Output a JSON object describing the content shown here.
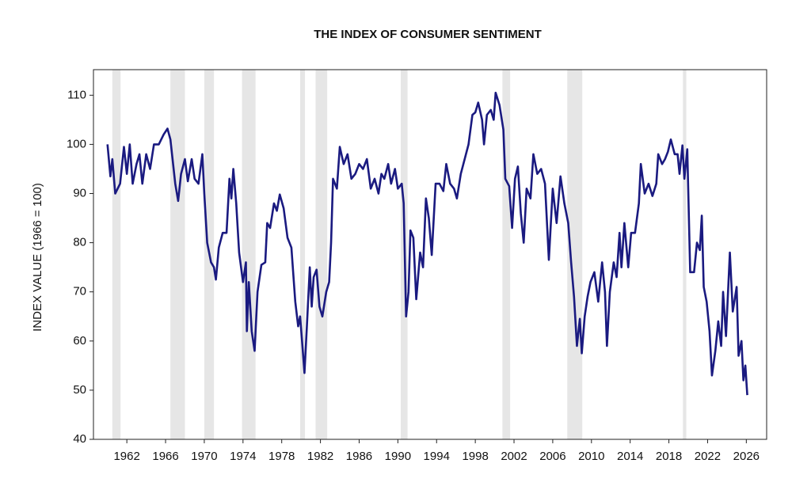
{
  "chart_data": {
    "type": "line",
    "title": "THE INDEX OF CONSUMER SENTIMENT",
    "y_label": "INDEX VALUE (1966 = 100)",
    "color": "#1a1a80",
    "shade_color": "#e6e6e6",
    "shaded_regions": [
      {
        "start": 1960.5,
        "end": 1961.35
      },
      {
        "start": 1966.5,
        "end": 1968.0
      },
      {
        "start": 1970.0,
        "end": 1971.0
      },
      {
        "start": 1973.9,
        "end": 1975.3
      },
      {
        "start": 1979.9,
        "end": 1980.4
      },
      {
        "start": 1981.5,
        "end": 1982.7
      },
      {
        "start": 1990.3,
        "end": 1991.0
      },
      {
        "start": 2000.8,
        "end": 2001.6
      },
      {
        "start": 2007.5,
        "end": 2009.05
      },
      {
        "start": 2019.45,
        "end": 2019.8
      }
    ],
    "x": [
      1960.0,
      1960.3,
      1960.5,
      1960.8,
      1961.3,
      1961.7,
      1962.0,
      1962.3,
      1962.6,
      1963.0,
      1963.3,
      1963.6,
      1964.0,
      1964.4,
      1964.8,
      1965.3,
      1965.8,
      1966.2,
      1966.5,
      1967.0,
      1967.3,
      1967.6,
      1968.0,
      1968.3,
      1968.7,
      1969.0,
      1969.4,
      1969.8,
      1970.0,
      1970.3,
      1970.7,
      1971.0,
      1971.2,
      1971.5,
      1971.9,
      1972.3,
      1972.6,
      1972.8,
      1973.0,
      1973.3,
      1973.6,
      1974.0,
      1974.3,
      1974.4,
      1974.6,
      1974.9,
      1975.2,
      1975.5,
      1975.9,
      1976.3,
      1976.5,
      1976.8,
      1977.2,
      1977.5,
      1977.8,
      1978.2,
      1978.6,
      1979.0,
      1979.4,
      1979.7,
      1979.9,
      1980.1,
      1980.35,
      1980.6,
      1980.9,
      1981.1,
      1981.3,
      1981.6,
      1981.9,
      1982.2,
      1982.6,
      1982.9,
      1983.1,
      1983.3,
      1983.7,
      1984.0,
      1984.4,
      1984.8,
      1985.2,
      1985.6,
      1986.0,
      1986.4,
      1986.8,
      1987.2,
      1987.6,
      1988.0,
      1988.3,
      1988.6,
      1989.0,
      1989.3,
      1989.7,
      1990.0,
      1990.4,
      1990.6,
      1990.85,
      1991.1,
      1991.3,
      1991.6,
      1991.9,
      1992.3,
      1992.6,
      1992.9,
      1993.2,
      1993.5,
      1993.9,
      1994.3,
      1994.7,
      1995.0,
      1995.4,
      1995.8,
      1996.1,
      1996.5,
      1996.9,
      1997.3,
      1997.7,
      1998.0,
      1998.3,
      1998.7,
      1998.9,
      1999.2,
      1999.6,
      1999.9,
      2000.1,
      2000.5,
      2000.9,
      2001.1,
      2001.5,
      2001.8,
      2002.1,
      2002.4,
      2002.7,
      2003.0,
      2003.3,
      2003.7,
      2004.0,
      2004.4,
      2004.8,
      2005.2,
      2005.6,
      2006.0,
      2006.4,
      2006.8,
      2007.2,
      2007.6,
      2007.9,
      2008.2,
      2008.5,
      2008.8,
      2009.0,
      2009.3,
      2009.6,
      2009.9,
      2010.3,
      2010.7,
      2011.1,
      2011.4,
      2011.6,
      2011.9,
      2012.3,
      2012.6,
      2012.9,
      2013.1,
      2013.4,
      2013.8,
      2014.1,
      2014.5,
      2014.9,
      2015.1,
      2015.5,
      2015.9,
      2016.3,
      2016.7,
      2016.9,
      2017.3,
      2017.6,
      2017.9,
      2018.2,
      2018.6,
      2018.9,
      2019.1,
      2019.4,
      2019.6,
      2019.9,
      2020.2,
      2020.6,
      2020.9,
      2021.2,
      2021.4,
      2021.6,
      2021.9,
      2022.2,
      2022.45,
      2022.8,
      2023.1,
      2023.4,
      2023.6,
      2023.9,
      2024.3,
      2024.6,
      2025.0,
      2025.2,
      2025.5,
      2025.7,
      2025.9,
      2026.1
    ],
    "values": [
      100,
      93.5,
      97,
      90,
      92,
      99.5,
      94,
      100,
      92,
      96,
      98,
      92,
      98,
      95,
      100,
      100,
      102,
      103.2,
      101,
      92,
      88.5,
      94,
      97,
      92.5,
      97,
      93,
      92,
      98,
      90,
      80,
      76,
      75,
      72.5,
      79,
      82,
      82,
      93,
      89,
      95,
      88,
      78,
      72,
      76,
      62,
      72,
      62,
      58,
      70,
      75.5,
      76,
      84,
      83,
      88,
      86.5,
      89.8,
      87,
      81,
      79,
      68,
      63,
      65,
      60,
      53.5,
      63,
      75,
      67,
      73,
      74.5,
      67,
      65,
      70,
      72,
      80,
      93,
      91,
      99.5,
      96,
      98,
      93,
      94,
      96,
      95,
      97,
      91,
      93,
      90,
      94,
      93,
      96,
      92,
      95,
      91,
      92,
      88,
      65,
      70,
      82.5,
      81,
      68.5,
      78,
      75,
      89,
      85,
      77.5,
      92,
      92,
      90.5,
      96,
      92,
      91,
      89,
      94,
      97,
      100,
      106,
      106.5,
      108.5,
      105,
      100,
      106,
      107,
      105,
      110.5,
      108,
      103,
      93,
      91.5,
      83,
      93,
      95.5,
      86,
      80,
      91,
      89,
      98,
      94,
      95,
      92,
      76.5,
      91,
      84,
      93.5,
      88,
      84,
      76,
      69,
      59,
      64.5,
      57.5,
      65,
      69,
      72,
      74,
      68,
      76,
      70,
      59,
      70,
      76,
      73,
      82,
      75,
      84,
      75,
      82,
      82,
      88,
      96,
      90,
      92,
      89.5,
      92,
      98,
      96,
      97,
      98.5,
      101,
      98,
      98,
      94,
      99.8,
      93,
      99,
      74,
      74,
      80,
      78.5,
      85.5,
      71,
      68,
      62,
      53,
      58,
      64,
      59,
      70,
      61,
      78,
      66,
      71,
      57,
      60,
      52,
      55,
      49
    ],
    "xlim": [
      1958.55,
      2028.1
    ],
    "ylim": [
      40,
      115.2
    ],
    "xticks": [
      1962,
      1966,
      1970,
      1974,
      1978,
      1982,
      1986,
      1990,
      1994,
      1998,
      2002,
      2006,
      2010,
      2014,
      2018,
      2022,
      2026
    ],
    "yticks": [
      40,
      50,
      60,
      70,
      80,
      90,
      100,
      110
    ]
  }
}
